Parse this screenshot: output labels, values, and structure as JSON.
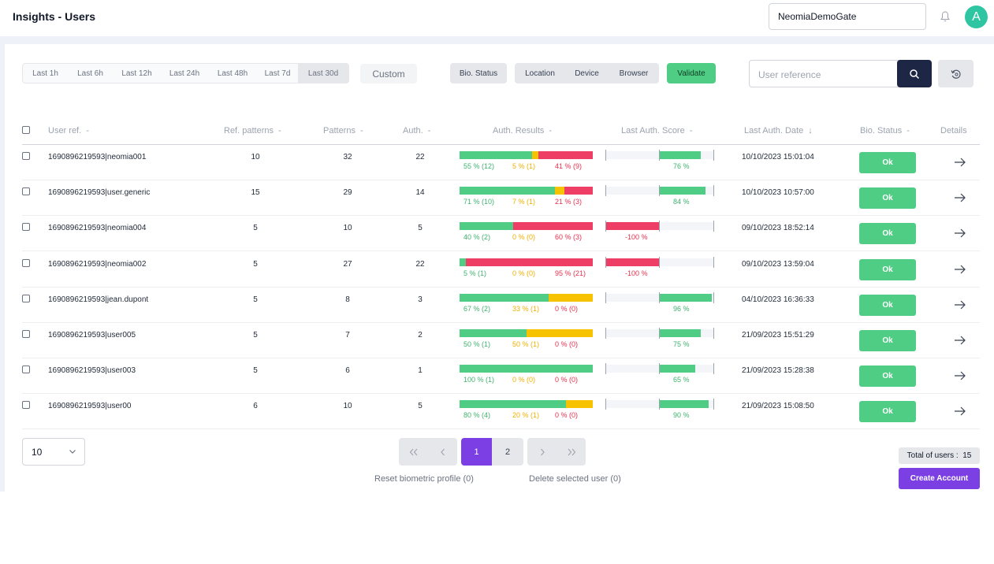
{
  "header": {
    "title": "Insights - Users",
    "gate_value": "NeomiaDemoGate",
    "avatar_letter": "A"
  },
  "toolbar": {
    "time_ranges": [
      "Last 1h",
      "Last 6h",
      "Last 12h",
      "Last 24h",
      "Last 48h",
      "Last 7d",
      "Last 30d"
    ],
    "active_range": "Last 30d",
    "custom_label": "Custom",
    "bio_status_label": "Bio. Status",
    "filters": [
      "Location",
      "Device",
      "Browser"
    ],
    "validate_label": "Validate",
    "search_placeholder": "User reference"
  },
  "table": {
    "columns": {
      "user_ref": "User ref.",
      "ref_patterns": "Ref. patterns",
      "patterns": "Patterns",
      "auth": "Auth.",
      "auth_results": "Auth. Results",
      "last_score": "Last Auth. Score",
      "last_date": "Last Auth. Date",
      "bio_status": "Bio. Status",
      "details": "Details"
    },
    "sort_dash": "-",
    "sort_down": "↓",
    "rows": [
      {
        "user": "1690896219593|neomia001",
        "ref_patterns": "10",
        "patterns": "32",
        "auth": "22",
        "g": 55,
        "y": 5,
        "r": 41,
        "g_lbl": "55 %  (12)",
        "y_lbl": "5 %  (1)",
        "r_lbl": "41 %  (9)",
        "score": 76,
        "score_lbl": "76 %",
        "date": "10/10/2023 15:01:04",
        "status": "Ok"
      },
      {
        "user": "1690896219593|user.generic",
        "ref_patterns": "15",
        "patterns": "29",
        "auth": "14",
        "g": 71,
        "y": 7,
        "r": 21,
        "g_lbl": "71 %  (10)",
        "y_lbl": "7 %  (1)",
        "r_lbl": "21 %  (3)",
        "score": 84,
        "score_lbl": "84 %",
        "date": "10/10/2023 10:57:00",
        "status": "Ok"
      },
      {
        "user": "1690896219593|neomia004",
        "ref_patterns": "5",
        "patterns": "10",
        "auth": "5",
        "g": 40,
        "y": 0,
        "r": 60,
        "g_lbl": "40 %  (2)",
        "y_lbl": "0 %  (0)",
        "r_lbl": "60 %  (3)",
        "score": -100,
        "score_lbl": "-100 %",
        "date": "09/10/2023 18:52:14",
        "status": "Ok"
      },
      {
        "user": "1690896219593|neomia002",
        "ref_patterns": "5",
        "patterns": "27",
        "auth": "22",
        "g": 5,
        "y": 0,
        "r": 95,
        "g_lbl": "5 %  (1)",
        "y_lbl": "0 %  (0)",
        "r_lbl": "95 %  (21)",
        "score": -100,
        "score_lbl": "-100 %",
        "date": "09/10/2023 13:59:04",
        "status": "Ok"
      },
      {
        "user": "1690896219593|jean.dupont",
        "ref_patterns": "5",
        "patterns": "8",
        "auth": "3",
        "g": 67,
        "y": 33,
        "r": 0,
        "g_lbl": "67 %  (2)",
        "y_lbl": "33 %  (1)",
        "r_lbl": "0 %  (0)",
        "score": 96,
        "score_lbl": "96 %",
        "date": "04/10/2023 16:36:33",
        "status": "Ok"
      },
      {
        "user": "1690896219593|user005",
        "ref_patterns": "5",
        "patterns": "7",
        "auth": "2",
        "g": 50,
        "y": 50,
        "r": 0,
        "g_lbl": "50 %  (1)",
        "y_lbl": "50 %  (1)",
        "r_lbl": "0 %  (0)",
        "score": 75,
        "score_lbl": "75 %",
        "date": "21/09/2023 15:51:29",
        "status": "Ok"
      },
      {
        "user": "1690896219593|user003",
        "ref_patterns": "5",
        "patterns": "6",
        "auth": "1",
        "g": 100,
        "y": 0,
        "r": 0,
        "g_lbl": "100 %  (1)",
        "y_lbl": "0 %  (0)",
        "r_lbl": "0 %  (0)",
        "score": 65,
        "score_lbl": "65 %",
        "date": "21/09/2023 15:28:38",
        "status": "Ok"
      },
      {
        "user": "1690896219593|user00",
        "ref_patterns": "6",
        "patterns": "10",
        "auth": "5",
        "g": 80,
        "y": 20,
        "r": 0,
        "g_lbl": "80 %  (4)",
        "y_lbl": "20 %  (1)",
        "r_lbl": "0 %  (0)",
        "score": 90,
        "score_lbl": "90 %",
        "date": "21/09/2023 15:08:50",
        "status": "Ok"
      }
    ]
  },
  "footer": {
    "page_size": "10",
    "pages": [
      "1",
      "2"
    ],
    "current_page": "1",
    "reset_label": "Reset biometric profile (0)",
    "delete_label": "Delete selected user  (0)",
    "total_label": "Total of users :",
    "total_value": "15",
    "create_label": "Create Account"
  },
  "colors": {
    "ok": "#4fcd84",
    "warn": "#f7c300",
    "fail": "#ef3e66",
    "accent": "#7b3fe4",
    "navy": "#1e2646"
  }
}
